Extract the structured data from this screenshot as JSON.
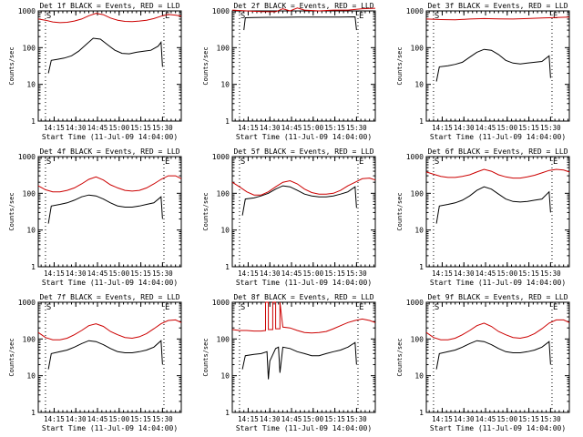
{
  "figure": {
    "xlabel": "Start Time (11-Jul-09 14:04:00)",
    "ylabel": "Counts/sec",
    "xticks": [
      "14:15",
      "14:30",
      "14:45",
      "15:00",
      "15:15",
      "15:30"
    ],
    "yticks": [
      "1",
      "10",
      "100",
      "1000"
    ],
    "colors": {
      "events": "#000000",
      "lld": "#cc0000",
      "axes": "#000000",
      "background": "#ffffff"
    }
  },
  "chart_data": [
    {
      "type": "line",
      "title": "Det 1f BLACK = Events, RED = LLD",
      "xlabel": "Start Time (11-Jul-09 14:04:00)",
      "ylabel": "Counts/sec",
      "x_unit": "minutes after 14:04:00",
      "xlim": [
        0,
        99
      ],
      "ylim": [
        1,
        1000
      ],
      "yscale": "log",
      "event_markers": {
        "S": 5,
        "E": 87
      },
      "series": [
        {
          "name": "BLACK = Events",
          "color": "#000000",
          "x": [
            7,
            9,
            13,
            18,
            23,
            28,
            33,
            38,
            43,
            48,
            53,
            58,
            63,
            68,
            73,
            78,
            83,
            85,
            86
          ],
          "y": [
            20,
            45,
            48,
            52,
            60,
            80,
            120,
            180,
            170,
            120,
            85,
            70,
            68,
            75,
            80,
            85,
            110,
            140,
            30
          ]
        },
        {
          "name": "RED = LLD",
          "color": "#cc0000",
          "x": [
            0,
            5,
            10,
            15,
            20,
            25,
            30,
            35,
            40,
            45,
            50,
            55,
            60,
            65,
            70,
            75,
            80,
            85,
            90,
            95,
            99
          ],
          "y": [
            600,
            560,
            500,
            480,
            490,
            530,
            600,
            740,
            860,
            790,
            640,
            560,
            520,
            510,
            530,
            560,
            620,
            720,
            800,
            770,
            720
          ]
        }
      ]
    },
    {
      "type": "line",
      "title": "Det 2f BLACK = Events, RED = LLD",
      "xlabel": "Start Time (11-Jul-09 14:04:00)",
      "ylabel": "Counts/sec",
      "x_unit": "minutes after 14:04:00",
      "xlim": [
        0,
        99
      ],
      "ylim": [
        1,
        1000
      ],
      "yscale": "log",
      "event_markers": {
        "S": 5,
        "E": 87
      },
      "series": [
        {
          "name": "BLACK = Events",
          "color": "#000000",
          "x": [
            8,
            9,
            15,
            25,
            35,
            45,
            55,
            65,
            75,
            85,
            86
          ],
          "y": [
            300,
            650,
            660,
            670,
            670,
            680,
            680,
            680,
            680,
            690,
            300
          ]
        },
        {
          "name": "RED = LLD",
          "color": "#cc0000",
          "x": [
            0,
            10,
            20,
            30,
            35,
            40,
            45,
            50,
            60,
            70,
            80,
            90,
            99
          ],
          "y": [
            1050,
            1000,
            960,
            950,
            1150,
            1000,
            1200,
            1050,
            1000,
            1050,
            1050,
            1150,
            1180
          ]
        }
      ]
    },
    {
      "type": "line",
      "title": "Det 3f BLACK = Events, RED = LLD",
      "xlabel": "Start Time (11-Jul-09 14:04:00)",
      "ylabel": "Counts/sec",
      "x_unit": "minutes after 14:04:00",
      "xlim": [
        0,
        99
      ],
      "ylim": [
        1,
        1000
      ],
      "yscale": "log",
      "event_markers": {
        "S": 5,
        "E": 87
      },
      "series": [
        {
          "name": "BLACK = Events",
          "color": "#000000",
          "x": [
            7,
            9,
            15,
            20,
            25,
            30,
            35,
            40,
            45,
            50,
            55,
            60,
            65,
            70,
            75,
            80,
            85,
            86
          ],
          "y": [
            12,
            30,
            32,
            35,
            40,
            55,
            75,
            90,
            85,
            65,
            45,
            38,
            36,
            38,
            40,
            42,
            60,
            15
          ]
        },
        {
          "name": "RED = LLD",
          "color": "#cc0000",
          "x": [
            0,
            10,
            20,
            30,
            40,
            50,
            60,
            70,
            80,
            90,
            99
          ],
          "y": [
            600,
            580,
            570,
            600,
            620,
            610,
            600,
            620,
            640,
            660,
            680
          ]
        }
      ]
    },
    {
      "type": "line",
      "title": "Det 4f BLACK = Events, RED = LLD",
      "xlabel": "Start Time (11-Jul-09 14:04:00)",
      "ylabel": "Counts/sec",
      "x_unit": "minutes after 14:04:00",
      "xlim": [
        0,
        99
      ],
      "ylim": [
        1,
        1000
      ],
      "yscale": "log",
      "event_markers": {
        "S": 5,
        "E": 87
      },
      "series": [
        {
          "name": "BLACK = Events",
          "color": "#000000",
          "x": [
            7,
            9,
            15,
            20,
            25,
            30,
            35,
            40,
            45,
            50,
            55,
            60,
            65,
            70,
            75,
            80,
            85,
            86
          ],
          "y": [
            15,
            45,
            50,
            55,
            65,
            80,
            90,
            85,
            70,
            55,
            45,
            42,
            42,
            45,
            50,
            55,
            80,
            20
          ]
        },
        {
          "name": "RED = LLD",
          "color": "#cc0000",
          "x": [
            0,
            5,
            10,
            15,
            20,
            25,
            30,
            35,
            40,
            45,
            50,
            55,
            60,
            65,
            70,
            75,
            80,
            85,
            90,
            95,
            99
          ],
          "y": [
            160,
            125,
            110,
            110,
            120,
            140,
            180,
            240,
            280,
            230,
            170,
            140,
            120,
            115,
            120,
            140,
            180,
            240,
            300,
            300,
            250
          ]
        }
      ]
    },
    {
      "type": "line",
      "title": "Det 5f BLACK = Events, RED = LLD",
      "xlabel": "Start Time (11-Jul-09 14:04:00)",
      "ylabel": "Counts/sec",
      "x_unit": "minutes after 14:04:00",
      "xlim": [
        0,
        99
      ],
      "ylim": [
        1,
        1000
      ],
      "yscale": "log",
      "event_markers": {
        "S": 5,
        "E": 87
      },
      "series": [
        {
          "name": "BLACK = Events",
          "color": "#000000",
          "x": [
            7,
            9,
            15,
            20,
            25,
            30,
            35,
            40,
            45,
            50,
            55,
            60,
            65,
            70,
            75,
            80,
            85,
            86
          ],
          "y": [
            25,
            70,
            75,
            85,
            100,
            130,
            160,
            150,
            120,
            95,
            85,
            80,
            80,
            85,
            95,
            110,
            150,
            40
          ]
        },
        {
          "name": "RED = LLD",
          "color": "#cc0000",
          "x": [
            0,
            5,
            10,
            15,
            20,
            25,
            30,
            35,
            40,
            45,
            50,
            55,
            60,
            65,
            70,
            75,
            80,
            85,
            90,
            95,
            99
          ],
          "y": [
            200,
            150,
            110,
            90,
            90,
            110,
            150,
            200,
            220,
            180,
            130,
            105,
            95,
            95,
            100,
            120,
            160,
            200,
            250,
            260,
            230
          ]
        }
      ]
    },
    {
      "type": "line",
      "title": "Det 6f BLACK = Events, RED = LLD",
      "xlabel": "Start Time (11-Jul-09 14:04:00)",
      "ylabel": "Counts/sec",
      "x_unit": "minutes after 14:04:00",
      "xlim": [
        0,
        99
      ],
      "ylim": [
        1,
        1000
      ],
      "yscale": "log",
      "event_markers": {
        "S": 5,
        "E": 87
      },
      "series": [
        {
          "name": "BLACK = Events",
          "color": "#000000",
          "x": [
            7,
            9,
            15,
            20,
            25,
            30,
            35,
            40,
            45,
            50,
            55,
            60,
            65,
            70,
            75,
            80,
            85,
            86
          ],
          "y": [
            15,
            45,
            50,
            55,
            65,
            85,
            120,
            150,
            130,
            95,
            70,
            60,
            58,
            60,
            65,
            70,
            110,
            30
          ]
        },
        {
          "name": "RED = LLD",
          "color": "#cc0000",
          "x": [
            0,
            5,
            10,
            15,
            20,
            25,
            30,
            35,
            40,
            45,
            50,
            55,
            60,
            65,
            70,
            75,
            80,
            85,
            90,
            95,
            99
          ],
          "y": [
            380,
            330,
            290,
            270,
            270,
            290,
            320,
            380,
            450,
            400,
            320,
            280,
            260,
            260,
            280,
            310,
            360,
            420,
            450,
            430,
            380
          ]
        }
      ]
    },
    {
      "type": "line",
      "title": "Det 7f BLACK = Events, RED = LLD",
      "xlabel": "Start Time (11-Jul-09 14:04:00)",
      "ylabel": "Counts/sec",
      "x_unit": "minutes after 14:04:00",
      "xlim": [
        0,
        99
      ],
      "ylim": [
        1,
        1000
      ],
      "yscale": "log",
      "event_markers": {
        "S": 5,
        "E": 87
      },
      "series": [
        {
          "name": "BLACK = Events",
          "color": "#000000",
          "x": [
            7,
            9,
            15,
            20,
            25,
            30,
            35,
            40,
            45,
            50,
            55,
            60,
            65,
            70,
            75,
            80,
            85,
            86
          ],
          "y": [
            15,
            40,
            45,
            50,
            60,
            75,
            90,
            85,
            70,
            55,
            45,
            42,
            42,
            45,
            50,
            60,
            90,
            20
          ]
        },
        {
          "name": "RED = LLD",
          "color": "#cc0000",
          "x": [
            0,
            5,
            10,
            15,
            20,
            25,
            30,
            35,
            40,
            45,
            50,
            55,
            60,
            65,
            70,
            75,
            80,
            85,
            90,
            95,
            99
          ],
          "y": [
            150,
            110,
            95,
            95,
            105,
            130,
            170,
            230,
            260,
            220,
            160,
            130,
            110,
            105,
            115,
            140,
            190,
            260,
            320,
            330,
            280
          ]
        }
      ]
    },
    {
      "type": "line",
      "title": "Det 8f BLACK = Events, RED = LLD",
      "xlabel": "Start Time (11-Jul-09 14:04:00)",
      "ylabel": "Counts/sec",
      "x_unit": "minutes after 14:04:00",
      "xlim": [
        0,
        99
      ],
      "ylim": [
        1,
        1000
      ],
      "yscale": "log",
      "event_markers": {
        "S": 5,
        "E": 87
      },
      "series": [
        {
          "name": "BLACK = Events",
          "color": "#000000",
          "x": [
            7,
            9,
            15,
            20,
            24,
            25,
            26,
            30,
            32,
            33,
            35,
            40,
            45,
            50,
            55,
            60,
            65,
            70,
            75,
            80,
            85,
            86
          ],
          "y": [
            15,
            35,
            38,
            40,
            45,
            8,
            25,
            55,
            60,
            12,
            60,
            55,
            45,
            40,
            35,
            35,
            40,
            45,
            50,
            60,
            80,
            20
          ]
        },
        {
          "name": "RED = LLD",
          "color": "#cc0000",
          "x": [
            0,
            5,
            10,
            15,
            20,
            23,
            23,
            25,
            25,
            28,
            28,
            30,
            30,
            33,
            33,
            35,
            40,
            45,
            50,
            55,
            60,
            65,
            70,
            75,
            80,
            85,
            90,
            95,
            99
          ],
          "y": [
            180,
            170,
            170,
            165,
            165,
            170,
            1000,
            1000,
            180,
            180,
            1000,
            1000,
            190,
            190,
            1000,
            210,
            200,
            170,
            150,
            145,
            150,
            160,
            190,
            230,
            280,
            320,
            350,
            320,
            280
          ]
        }
      ]
    },
    {
      "type": "line",
      "title": "Det 9f BLACK = Events, RED = LLD",
      "xlabel": "Start Time (11-Jul-09 14:04:00)",
      "ylabel": "Counts/sec",
      "x_unit": "minutes after 14:04:00",
      "xlim": [
        0,
        99
      ],
      "ylim": [
        1,
        1000
      ],
      "yscale": "log",
      "event_markers": {
        "S": 5,
        "E": 87
      },
      "series": [
        {
          "name": "BLACK = Events",
          "color": "#000000",
          "x": [
            7,
            9,
            15,
            20,
            25,
            30,
            35,
            40,
            45,
            50,
            55,
            60,
            65,
            70,
            75,
            80,
            85,
            86
          ],
          "y": [
            15,
            40,
            45,
            50,
            60,
            75,
            90,
            85,
            70,
            55,
            45,
            42,
            42,
            45,
            50,
            60,
            85,
            20
          ]
        },
        {
          "name": "RED = LLD",
          "color": "#cc0000",
          "x": [
            0,
            5,
            10,
            15,
            20,
            25,
            30,
            35,
            40,
            45,
            50,
            55,
            60,
            65,
            70,
            75,
            80,
            85,
            90,
            95,
            99
          ],
          "y": [
            150,
            110,
            95,
            95,
            105,
            130,
            170,
            230,
            270,
            220,
            160,
            130,
            110,
            105,
            115,
            140,
            190,
            270,
            330,
            330,
            280
          ]
        }
      ]
    }
  ]
}
